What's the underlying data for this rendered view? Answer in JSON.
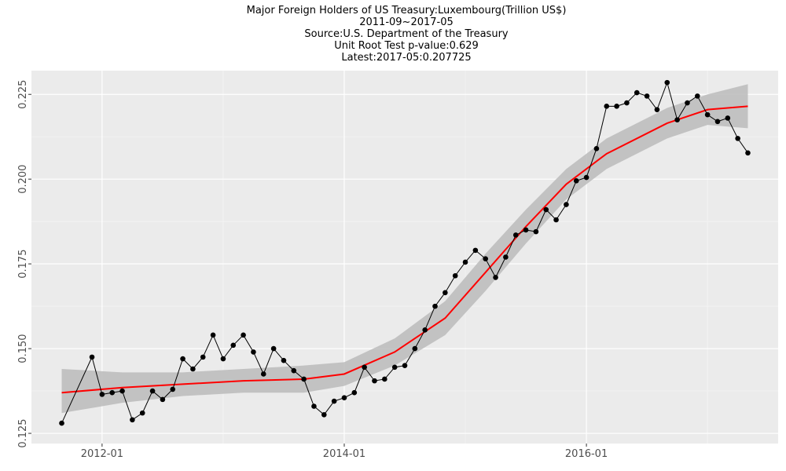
{
  "chart_data": {
    "type": "line",
    "title": "Major Foreign Holders of US Treasury:Luxembourg(Trillion US$)",
    "subtitle": [
      "2011-09~2017-05",
      "Source:U.S. Department of the Treasury",
      "Unit Root Test p-value:0.629",
      "Latest:2017-05:0.207725"
    ],
    "x": [
      "2011-09",
      "2011-12",
      "2012-01",
      "2012-02",
      "2012-03",
      "2012-04",
      "2012-05",
      "2012-06",
      "2012-07",
      "2012-08",
      "2012-09",
      "2012-10",
      "2012-11",
      "2012-12",
      "2013-01",
      "2013-02",
      "2013-03",
      "2013-04",
      "2013-05",
      "2013-06",
      "2013-07",
      "2013-08",
      "2013-09",
      "2013-10",
      "2013-11",
      "2013-12",
      "2014-01",
      "2014-02",
      "2014-03",
      "2014-04",
      "2014-05",
      "2014-06",
      "2014-07",
      "2014-08",
      "2014-09",
      "2014-10",
      "2014-11",
      "2014-12",
      "2015-01",
      "2015-02",
      "2015-03",
      "2015-04",
      "2015-05",
      "2015-06",
      "2015-07",
      "2015-08",
      "2015-09",
      "2015-10",
      "2015-11",
      "2015-12",
      "2016-01",
      "2016-02",
      "2016-03",
      "2016-04",
      "2016-05",
      "2016-06",
      "2016-07",
      "2016-08",
      "2016-09",
      "2016-10",
      "2016-11",
      "2016-12",
      "2017-01",
      "2017-02",
      "2017-03",
      "2017-04",
      "2017-05"
    ],
    "series": [
      {
        "color": "#000000",
        "values": [
          0.128,
          0.1475,
          0.1365,
          0.137,
          0.1375,
          0.129,
          0.131,
          0.1375,
          0.135,
          0.138,
          0.147,
          0.144,
          0.1475,
          0.154,
          0.147,
          0.151,
          0.154,
          0.149,
          0.1425,
          0.15,
          0.1465,
          0.1435,
          0.141,
          0.133,
          0.1305,
          0.1345,
          0.1355,
          0.137,
          0.1445,
          0.1405,
          0.141,
          0.1445,
          0.145,
          0.15,
          0.1555,
          0.1625,
          0.1665,
          0.1715,
          0.1755,
          0.179,
          0.1765,
          0.171,
          0.177,
          0.1835,
          0.185,
          0.1845,
          0.191,
          0.188,
          0.1925,
          0.1995,
          0.2005,
          0.209,
          0.2215,
          0.2215,
          0.2225,
          0.2255,
          0.2245,
          0.2205,
          0.2285,
          0.2175,
          0.2225,
          0.2245,
          0.219,
          0.217,
          0.218,
          0.212,
          0.207725
        ]
      }
    ],
    "smooth": {
      "color": "#ff0000",
      "band_color": "#bebebe",
      "x": [
        "2011-09",
        "2012-03",
        "2012-09",
        "2013-03",
        "2013-09",
        "2014-01",
        "2014-06",
        "2014-11",
        "2015-03",
        "2015-07",
        "2015-11",
        "2016-03",
        "2016-09",
        "2017-01",
        "2017-05"
      ],
      "values": [
        0.137,
        0.1385,
        0.1395,
        0.1405,
        0.141,
        0.1425,
        0.149,
        0.159,
        0.1725,
        0.186,
        0.1985,
        0.2075,
        0.2165,
        0.2205,
        0.2215
      ],
      "lower": [
        0.131,
        0.134,
        0.136,
        0.137,
        0.137,
        0.139,
        0.145,
        0.154,
        0.167,
        0.181,
        0.194,
        0.203,
        0.212,
        0.216,
        0.215
      ],
      "upper": [
        0.144,
        0.143,
        0.143,
        0.144,
        0.145,
        0.146,
        0.153,
        0.164,
        0.178,
        0.191,
        0.203,
        0.212,
        0.221,
        0.225,
        0.228
      ]
    },
    "xlim": [
      "2011-06",
      "2017-08"
    ],
    "xticks": [
      "2012-01",
      "2014-01",
      "2016-01"
    ],
    "ylim": [
      0.122,
      0.232
    ],
    "yticks": [
      0.125,
      {
        "value": 0.15,
        "label": "0.150"
      },
      0.175,
      {
        "value": 0.2,
        "label": "0.200"
      },
      0.225
    ],
    "grid": true
  }
}
